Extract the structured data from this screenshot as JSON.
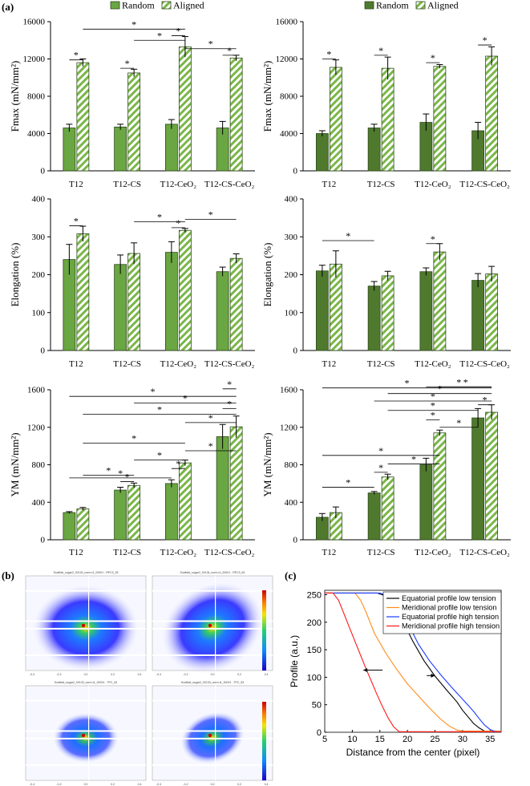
{
  "figure": {
    "panel_a_label": "(a)",
    "panel_b_label": "(b)",
    "panel_c_label": "(c)"
  },
  "colors": {
    "random_fill": "#6aa642",
    "random_fill_dark": "#4f7a2e",
    "aligned_stripe": "#7ab648",
    "line_black": "#000000",
    "line_orange": "#ff8c1a",
    "line_blue": "#1a3dff",
    "line_red": "#ff1a1a"
  },
  "chart_data": [
    {
      "id": "a1",
      "type": "bar",
      "ylabel": "Fmax (mN/mm²)",
      "ylim": [
        0,
        16000
      ],
      "yticks": [
        0,
        4000,
        8000,
        12000,
        16000
      ],
      "legend": [
        "Random",
        "Aligned"
      ],
      "legend_position": "top",
      "fill_style": "light",
      "categories": [
        "T12",
        "T12-CS",
        "T12-CeO₂",
        "T12-CS-CeO₂"
      ],
      "series": [
        {
          "name": "Random",
          "values": [
            4600,
            4700,
            5000,
            4600
          ],
          "errors": [
            400,
            300,
            500,
            700
          ]
        },
        {
          "name": "Aligned",
          "values": [
            11600,
            10500,
            13300,
            12100
          ],
          "errors": [
            400,
            400,
            1100,
            300
          ]
        }
      ],
      "significance": [
        [
          0,
          1,
          "*",
          11900
        ],
        [
          2,
          3,
          "*",
          11000
        ],
        [
          4,
          5,
          "*",
          14500
        ],
        [
          6,
          7,
          "*",
          12400
        ],
        [
          1,
          5,
          "*",
          15200
        ],
        [
          3,
          5,
          "*",
          14000
        ],
        [
          5,
          7,
          "*",
          13100
        ]
      ]
    },
    {
      "id": "a2",
      "type": "bar",
      "ylabel": "Fmax (mN/mm²)",
      "ylim": [
        0,
        16000
      ],
      "yticks": [
        0,
        4000,
        8000,
        12000,
        16000
      ],
      "legend": [
        "Random",
        "Aligned"
      ],
      "legend_position": "top",
      "fill_style": "dark",
      "categories": [
        "T12",
        "T12-CS",
        "T12-CeO₂",
        "T12-CS-CeO₂"
      ],
      "series": [
        {
          "name": "Random",
          "values": [
            4000,
            4600,
            5200,
            4300
          ],
          "errors": [
            300,
            400,
            900,
            900
          ]
        },
        {
          "name": "Aligned",
          "values": [
            11100,
            11000,
            11200,
            12300
          ],
          "errors": [
            800,
            1200,
            200,
            1000
          ]
        }
      ],
      "significance": [
        [
          0,
          1,
          "*",
          12000
        ],
        [
          2,
          3,
          "*",
          12400
        ],
        [
          4,
          5,
          "*",
          11600
        ],
        [
          6,
          7,
          "*",
          13500
        ]
      ]
    },
    {
      "id": "a3",
      "type": "bar",
      "ylabel": "Elongation (%)",
      "ylim": [
        0,
        400
      ],
      "yticks": [
        0,
        100,
        200,
        300,
        400
      ],
      "categories": [
        "T12",
        "T12-CS",
        "T12-CeO₂",
        "T12-CS-CeO₂"
      ],
      "fill_style": "light",
      "series": [
        {
          "name": "Random",
          "values": [
            240,
            227,
            259,
            208
          ],
          "errors": [
            40,
            25,
            28,
            12
          ]
        },
        {
          "name": "Aligned",
          "values": [
            308,
            256,
            317,
            243
          ],
          "errors": [
            20,
            28,
            5,
            12
          ]
        }
      ],
      "significance": [
        [
          0,
          1,
          "*",
          329
        ],
        [
          4,
          5,
          "*",
          324
        ],
        [
          3,
          5,
          "*",
          340
        ],
        [
          5,
          7,
          "*",
          346
        ]
      ]
    },
    {
      "id": "a4",
      "type": "bar",
      "ylabel": "Elongation (%)",
      "ylim": [
        0,
        400
      ],
      "yticks": [
        0,
        100,
        200,
        300,
        400
      ],
      "categories": [
        "T12",
        "T12-CS",
        "T12-CeO₂",
        "T12-CS-CeO₂"
      ],
      "fill_style": "dark",
      "series": [
        {
          "name": "Random",
          "values": [
            210,
            170,
            208,
            185
          ],
          "errors": [
            15,
            12,
            10,
            18
          ]
        },
        {
          "name": "Aligned",
          "values": [
            228,
            197,
            260,
            202
          ],
          "errors": [
            35,
            12,
            22,
            20
          ]
        }
      ],
      "significance": [
        [
          0,
          2,
          "*",
          290
        ],
        [
          4,
          5,
          "*",
          282
        ]
      ]
    },
    {
      "id": "a5",
      "type": "bar",
      "ylabel": "YM (mN/mm²)",
      "ylim": [
        0,
        1600
      ],
      "yticks": [
        0,
        400,
        800,
        1200,
        1600
      ],
      "categories": [
        "T12",
        "T12-CS",
        "T12-CeO₂",
        "T12-CS-CeO₂"
      ],
      "fill_style": "light",
      "series": [
        {
          "name": "Random",
          "values": [
            290,
            530,
            600,
            1100
          ],
          "errors": [
            10,
            30,
            40,
            130
          ]
        },
        {
          "name": "Aligned",
          "values": [
            330,
            580,
            820,
            1205
          ],
          "errors": [
            15,
            25,
            30,
            115
          ]
        }
      ],
      "significance": [
        [
          0,
          4,
          "*",
          660
        ],
        [
          1,
          3,
          "*",
          690
        ],
        [
          2,
          3,
          "*",
          620
        ],
        [
          3,
          5,
          "*",
          850
        ],
        [
          1,
          5,
          "*",
          1030
        ],
        [
          5,
          7,
          "*",
          950
        ],
        [
          4,
          5,
          "*",
          760
        ],
        [
          1,
          7,
          "*",
          1340
        ],
        [
          3,
          7,
          "*",
          1460
        ],
        [
          0,
          7,
          "*",
          1530
        ],
        [
          5,
          7,
          "*",
          1250
        ],
        [
          6,
          7,
          "*",
          1610
        ],
        [
          6,
          7,
          "*",
          1400
        ]
      ]
    },
    {
      "id": "a6",
      "type": "bar",
      "ylabel": "YM (mN/mm²)",
      "ylim": [
        0,
        1600
      ],
      "yticks": [
        0,
        400,
        800,
        1200,
        1600
      ],
      "categories": [
        "T12",
        "T12-CS",
        "T12-CeO₂",
        "T12-CS-CeO₂"
      ],
      "fill_style": "dark",
      "series": [
        {
          "name": "Random",
          "values": [
            240,
            500,
            800,
            1300
          ],
          "errors": [
            40,
            15,
            70,
            100
          ]
        },
        {
          "name": "Aligned",
          "values": [
            290,
            670,
            1140,
            1360
          ],
          "errors": [
            60,
            30,
            30,
            80
          ]
        }
      ],
      "significance": [
        [
          0,
          2,
          "*",
          560
        ],
        [
          2,
          3,
          "*",
          720
        ],
        [
          0,
          5,
          "*",
          900
        ],
        [
          3,
          5,
          "*",
          810
        ],
        [
          4,
          5,
          "*",
          1280
        ],
        [
          3,
          6,
          "*",
          1380
        ],
        [
          5,
          6,
          "*",
          1200
        ],
        [
          3,
          7,
          "*",
          1560
        ],
        [
          0,
          7,
          "*",
          1620
        ],
        [
          2,
          7,
          "*",
          1480
        ],
        [
          4,
          7,
          "*",
          1720
        ],
        [
          5,
          7,
          "*",
          1640
        ],
        [
          6,
          7,
          "*",
          1440
        ]
      ]
    },
    {
      "id": "c",
      "type": "line",
      "xlabel": "Distance from the center (pixel)",
      "ylabel": "Profile (a.u.)",
      "xlim": [
        5,
        37
      ],
      "ylim": [
        0,
        255
      ],
      "xticks": [
        5,
        10,
        15,
        20,
        25,
        30,
        35
      ],
      "yticks": [
        0,
        50,
        100,
        150,
        200,
        250
      ],
      "legend_position": "top-right",
      "series": [
        {
          "name": "Equatorial profile low tension",
          "color": "#000000",
          "x": [
            5,
            14.5,
            16,
            17.5,
            19,
            21,
            23,
            25,
            27,
            29,
            30,
            31,
            32,
            33,
            34,
            37
          ],
          "y": [
            253,
            253,
            248,
            232,
            205,
            165,
            130,
            102,
            78,
            55,
            40,
            28,
            16,
            8,
            2,
            2
          ]
        },
        {
          "name": "Meridional profile low tension",
          "color": "#ff8c1a",
          "x": [
            5,
            10.5,
            11.5,
            12.5,
            14,
            16,
            18,
            20,
            22,
            24,
            26,
            27.5,
            29,
            30,
            37
          ],
          "y": [
            253,
            253,
            240,
            218,
            180,
            145,
            115,
            88,
            66,
            44,
            24,
            12,
            4,
            2,
            2
          ]
        },
        {
          "name": "Equatorial profile high tension",
          "color": "#1a3dff",
          "x": [
            5,
            15,
            16.5,
            18,
            20,
            22,
            24,
            26,
            28,
            30,
            32,
            33,
            34,
            35,
            36,
            37
          ],
          "y": [
            253,
            253,
            248,
            232,
            200,
            160,
            130,
            105,
            82,
            60,
            38,
            25,
            13,
            5,
            1,
            1
          ]
        },
        {
          "name": "Meridional profile high tension",
          "color": "#ff1a1a",
          "x": [
            5,
            6.5,
            7.5,
            8.5,
            9.5,
            10.5,
            11.5,
            12.5,
            13.5,
            14.5,
            15.5,
            16.5,
            17.5,
            18.5,
            37
          ],
          "y": [
            253,
            253,
            240,
            215,
            190,
            165,
            140,
            115,
            92,
            68,
            46,
            26,
            10,
            1,
            1
          ]
        }
      ],
      "annotations": [
        {
          "type": "arrow",
          "from": [
            15.5,
            113
          ],
          "to": [
            12,
            113
          ],
          "direction": "left"
        },
        {
          "type": "arrow",
          "from": [
            23.5,
            103
          ],
          "to": [
            25,
            103
          ],
          "direction": "right"
        }
      ]
    }
  ],
  "panel_b": {
    "images": [
      {
        "title": "Scaffold_sugar2_00134_norm-t1_00001 - RPC3_35"
      },
      {
        "title": "Scaffold_sugar2_00134_norm-t1_00001 - RPC3_50"
      },
      {
        "title": "Scaffold_sugar2_00133_norm-t1_00001 - TPC_52"
      },
      {
        "title": "Scaffold_sugar2_00133_norm-t1_00001 - TPC_53"
      }
    ],
    "tick_labels": [
      "-0.4",
      "-0.2",
      "0.0",
      "0.2",
      "0.4"
    ]
  }
}
